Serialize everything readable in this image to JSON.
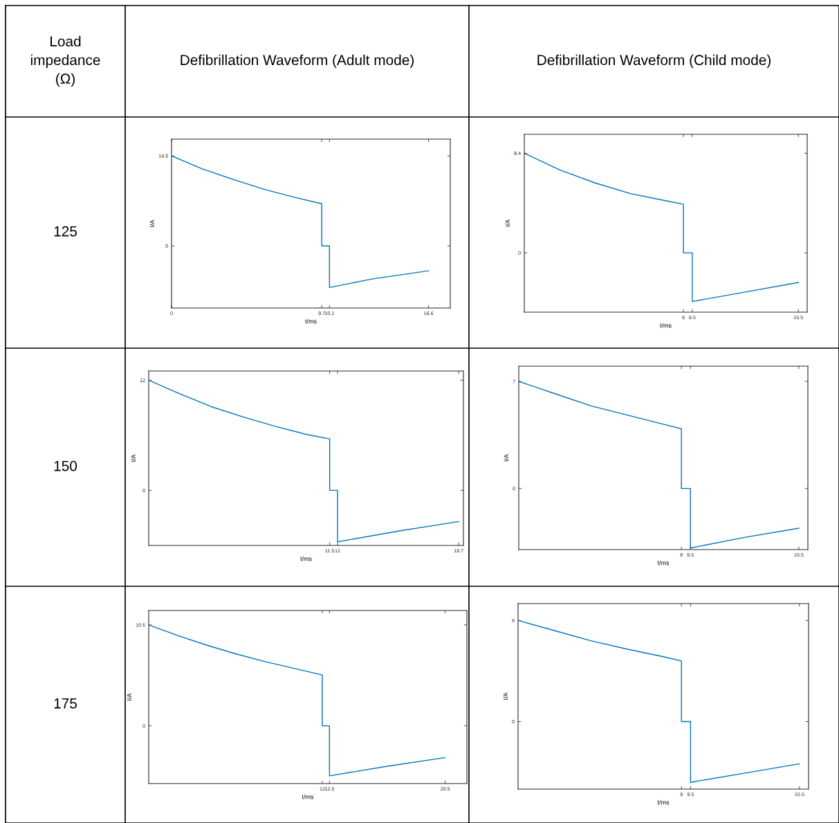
{
  "chart_data": [
    {
      "type": "line",
      "title": "Defibrillation Waveform (Adult mode)",
      "annotations": [
        "Load impedance (Ω)",
        "125"
      ],
      "xlabel": "t/ms",
      "ylabel": "I/A",
      "xlim": [
        0,
        18
      ],
      "ylim": [
        -10,
        17.2
      ],
      "xticks": [
        0,
        9.7,
        10.2,
        16.6
      ],
      "yticks": [
        0,
        14.5
      ],
      "series": [
        {
          "color": "#0072bd",
          "x": [
            0,
            2,
            4,
            6,
            8,
            9.7,
            9.7,
            10.2,
            10.2,
            13,
            16.6
          ],
          "values": [
            14.5,
            12.4,
            10.7,
            9.1,
            7.8,
            6.8,
            0,
            0,
            -6.7,
            -5.3,
            -4.0
          ]
        }
      ]
    },
    {
      "type": "line",
      "title": "Defibrillation Waveform (Child mode)",
      "xlabel": "t/ms",
      "ylabel": "I/A",
      "xlim": [
        0,
        16
      ],
      "ylim": [
        -5,
        10
      ],
      "xticks": [
        9,
        9.5,
        15.5
      ],
      "yticks": [
        0,
        8.4
      ],
      "series": [
        {
          "color": "#0072bd",
          "x": [
            0,
            2,
            4,
            6,
            8,
            9,
            9,
            9.5,
            9.5,
            12.5,
            15.5
          ],
          "values": [
            8.4,
            7.0,
            5.9,
            5.0,
            4.4,
            4.1,
            0,
            0,
            -4.1,
            -3.3,
            -2.5
          ]
        }
      ]
    },
    {
      "type": "line",
      "annotations": [
        "150"
      ],
      "xlabel": "t/ms",
      "ylabel": "I/A",
      "xlim": [
        0,
        20
      ],
      "ylim": [
        -6,
        13
      ],
      "xticks": [
        11.5,
        12,
        19.7
      ],
      "yticks": [
        0,
        12
      ],
      "series": [
        {
          "color": "#0072bd",
          "x": [
            0,
            2,
            4,
            6,
            8,
            10,
            11.5,
            11.5,
            12,
            12,
            16,
            19.7
          ],
          "values": [
            12,
            10.5,
            9.1,
            8.0,
            7.0,
            6.1,
            5.6,
            0,
            0,
            -5.6,
            -4.4,
            -3.4
          ]
        }
      ]
    },
    {
      "type": "line",
      "xlabel": "t/ms",
      "ylabel": "I/A",
      "xlim": [
        0,
        16
      ],
      "ylim": [
        -4,
        8
      ],
      "xticks": [
        9,
        9.5,
        15.5
      ],
      "yticks": [
        0,
        7
      ],
      "series": [
        {
          "color": "#0072bd",
          "x": [
            0,
            2,
            4,
            6,
            8,
            9,
            9,
            9.5,
            9.5,
            12.5,
            15.5
          ],
          "values": [
            7,
            6.2,
            5.4,
            4.8,
            4.2,
            3.9,
            0,
            0,
            -3.9,
            -3.2,
            -2.6
          ]
        }
      ]
    },
    {
      "type": "line",
      "annotations": [
        "175"
      ],
      "xlabel": "t/ms",
      "ylabel": "I/A",
      "xlim": [
        0,
        22
      ],
      "ylim": [
        -6,
        12
      ],
      "xticks": [
        12,
        12.5,
        20.5
      ],
      "yticks": [
        0,
        10.5
      ],
      "series": [
        {
          "color": "#0072bd",
          "x": [
            0,
            2,
            4,
            6,
            8,
            10,
            12,
            12,
            12.5,
            12.5,
            16.5,
            20.5
          ],
          "values": [
            10.5,
            9.4,
            8.4,
            7.5,
            6.7,
            6.0,
            5.3,
            0,
            0,
            -5.2,
            -4.2,
            -3.3
          ]
        }
      ]
    },
    {
      "type": "line",
      "xlabel": "t/ms",
      "ylabel": "I/A",
      "xlim": [
        0,
        16
      ],
      "ylim": [
        -4,
        7
      ],
      "xticks": [
        9,
        9.5,
        15.5
      ],
      "yticks": [
        0,
        6
      ],
      "series": [
        {
          "color": "#0072bd",
          "x": [
            0,
            2,
            4,
            6,
            8,
            9,
            9,
            9.5,
            9.5,
            12.5,
            15.5
          ],
          "values": [
            6,
            5.4,
            4.8,
            4.3,
            3.85,
            3.6,
            0,
            0,
            -3.6,
            -3.05,
            -2.5
          ]
        }
      ]
    }
  ]
}
